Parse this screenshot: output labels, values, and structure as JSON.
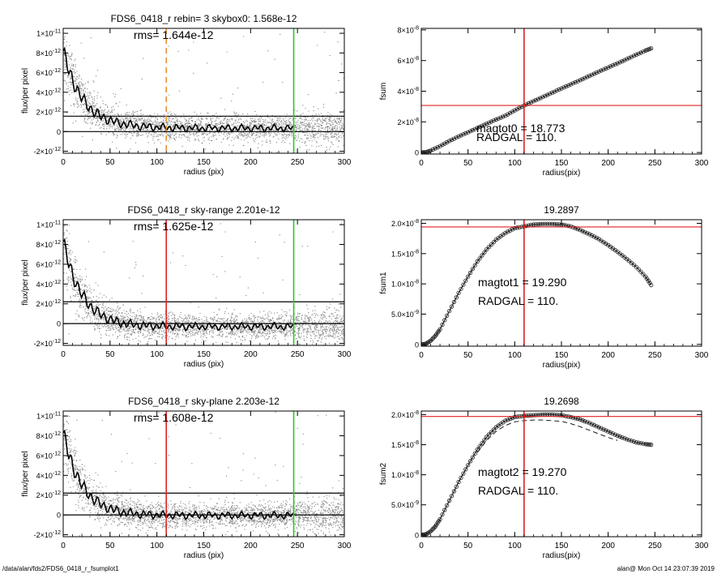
{
  "footer": {
    "path": "/data/alan/fds2/FDS6_0418_r_fsumplot1",
    "stamp": "alan@  Mon Oct 14 23:07:39 2019"
  },
  "colors": {
    "noise": "#8c8c8c",
    "profile": "#000000",
    "red": "#e02020",
    "green": "#22cc22",
    "orange": "#e89030"
  },
  "chart_data": [
    {
      "id": "p1",
      "type": "scatter",
      "title": "FDS6_0418_r rebin= 3    skybox0:  1.568e-12",
      "annotations": [
        {
          "text": "rms= 1.644e-12"
        }
      ],
      "xlabel": "radius (pix)",
      "ylabel": "flux/per pixel",
      "xlim": [
        0,
        300
      ],
      "ylim": [
        -2.2e-12,
        1.05e-11
      ],
      "xticks": [
        0,
        50,
        100,
        150,
        200,
        250,
        300
      ],
      "yticks": [
        {
          "v": 1e-11,
          "m": "1",
          "e": "-11",
          "x10": true
        },
        {
          "v": 8e-12,
          "m": "8",
          "e": "-12",
          "x10": true
        },
        {
          "v": 6e-12,
          "m": "6",
          "e": "-12",
          "x10": true
        },
        {
          "v": 4e-12,
          "m": "4",
          "e": "-12",
          "x10": true
        },
        {
          "v": 2e-12,
          "m": "2",
          "e": "-12",
          "x10": true
        },
        {
          "v": 0,
          "m": "0",
          "e": "",
          "x10": false
        },
        {
          "v": -2e-12,
          "m": "-2",
          "e": "-12",
          "x10": true
        }
      ],
      "hlines": [
        {
          "y": 0,
          "color": "#000000"
        },
        {
          "y": 1.568e-12,
          "color": "#000000"
        }
      ],
      "vlines": [
        {
          "x": 110,
          "color": "#e89030",
          "dashed": true
        },
        {
          "x": 246,
          "color": "#22cc22"
        }
      ],
      "profile": {
        "amp": 8.2e-12,
        "scale": 22,
        "floor": 3.5e-13
      },
      "noise": {
        "n": 2600,
        "spread": 6e-13,
        "outliers": 70
      }
    },
    {
      "id": "p2",
      "type": "line",
      "title": "",
      "annotations": [
        {
          "text": "magtot0 =  18.773"
        },
        {
          "text": "RADGAL =    110."
        }
      ],
      "xlabel": "radius(pix)",
      "ylabel": "fsum",
      "xlim": [
        0,
        300
      ],
      "ylim": [
        -1e-09,
        8.1e-08
      ],
      "xticks": [
        0,
        50,
        100,
        150,
        200,
        250,
        300
      ],
      "yticks": [
        {
          "v": 8e-08,
          "m": "8",
          "e": "-8",
          "x10": true
        },
        {
          "v": 6e-08,
          "m": "6",
          "e": "-8",
          "x10": true
        },
        {
          "v": 4e-08,
          "m": "4",
          "e": "-8",
          "x10": true
        },
        {
          "v": 2e-08,
          "m": "2",
          "e": "-8",
          "x10": true
        },
        {
          "v": 0,
          "m": "0",
          "e": "",
          "x10": false
        }
      ],
      "hlines": [
        {
          "y": 3.07e-08,
          "color": "#e02020"
        }
      ],
      "vlines": [
        {
          "x": 110,
          "color": "#e02020"
        }
      ],
      "curve": {
        "x": [
          0,
          5,
          10,
          20,
          30,
          40,
          50,
          60,
          70,
          80,
          90,
          100,
          110,
          120,
          130,
          140,
          150,
          160,
          170,
          180,
          190,
          200,
          210,
          220,
          230,
          240,
          246
        ],
        "y": [
          0,
          2e-10,
          1.2e-09,
          4.2e-09,
          7.5e-09,
          1.05e-08,
          1.32e-08,
          1.6e-08,
          1.88e-08,
          2.15e-08,
          2.4e-08,
          2.75e-08,
          3.07e-08,
          3.35e-08,
          3.62e-08,
          3.9e-08,
          4.18e-08,
          4.45e-08,
          4.72e-08,
          5e-08,
          5.28e-08,
          5.55e-08,
          5.82e-08,
          6.1e-08,
          6.38e-08,
          6.65e-08,
          6.8e-08
        ]
      }
    },
    {
      "id": "p3",
      "type": "scatter",
      "title": "FDS6_0418_r sky-range  2.201e-12",
      "annotations": [
        {
          "text": "rms= 1.625e-12"
        }
      ],
      "xlabel": "radius (pix)",
      "ylabel": "flux/per pixel",
      "xlim": [
        0,
        300
      ],
      "ylim": [
        -2.2e-12,
        1.05e-11
      ],
      "xticks": [
        0,
        50,
        100,
        150,
        200,
        250,
        300
      ],
      "yticks": [
        {
          "v": 1e-11,
          "m": "1",
          "e": "-11",
          "x10": true
        },
        {
          "v": 8e-12,
          "m": "8",
          "e": "-12",
          "x10": true
        },
        {
          "v": 6e-12,
          "m": "6",
          "e": "-12",
          "x10": true
        },
        {
          "v": 4e-12,
          "m": "4",
          "e": "-12",
          "x10": true
        },
        {
          "v": 2e-12,
          "m": "2",
          "e": "-12",
          "x10": true
        },
        {
          "v": 0,
          "m": "0",
          "e": "",
          "x10": false
        },
        {
          "v": -2e-12,
          "m": "-2",
          "e": "-12",
          "x10": true
        }
      ],
      "hlines": [
        {
          "y": 0,
          "color": "#000000"
        },
        {
          "y": 2.201e-12,
          "color": "#000000"
        }
      ],
      "vlines": [
        {
          "x": 110,
          "color": "#e02020"
        },
        {
          "x": 246,
          "color": "#22cc22"
        }
      ],
      "profile": {
        "amp": 8.3e-12,
        "scale": 20,
        "floor": -3e-13
      },
      "noise": {
        "n": 2600,
        "spread": 6e-13,
        "outliers": 70
      }
    },
    {
      "id": "p4",
      "type": "line",
      "title": "19.2897",
      "annotations": [
        {
          "text": "magtot1 =  19.290"
        },
        {
          "text": "RADGAL =    110."
        }
      ],
      "xlabel": "radius(pix)",
      "ylabel": "fsum1",
      "xlim": [
        0,
        300
      ],
      "ylim": [
        -3e-10,
        2.06e-08
      ],
      "xticks": [
        0,
        50,
        100,
        150,
        200,
        250,
        300
      ],
      "yticks": [
        {
          "v": 2e-08,
          "m": "2.0",
          "e": "-8",
          "x10": true
        },
        {
          "v": 1.5e-08,
          "m": "1.5",
          "e": "-8",
          "x10": true
        },
        {
          "v": 1e-08,
          "m": "1.0",
          "e": "-8",
          "x10": true
        },
        {
          "v": 5e-09,
          "m": "5.0",
          "e": "-9",
          "x10": true
        },
        {
          "v": 0,
          "m": "0",
          "e": "",
          "x10": false
        }
      ],
      "hlines": [
        {
          "y": 1.94e-08,
          "color": "#e02020"
        }
      ],
      "vlines": [
        {
          "x": 110,
          "color": "#e02020"
        }
      ],
      "curve": {
        "x": [
          0,
          5,
          10,
          15,
          20,
          30,
          40,
          50,
          60,
          70,
          80,
          90,
          100,
          110,
          120,
          130,
          140,
          150,
          160,
          170,
          180,
          190,
          200,
          210,
          220,
          230,
          240,
          246
        ],
        "y": [
          0,
          1e-10,
          6e-10,
          1.4e-09,
          2.5e-09,
          5.5e-09,
          8.5e-09,
          1.12e-08,
          1.37e-08,
          1.57e-08,
          1.73e-08,
          1.84e-08,
          1.92e-08,
          1.95e-08,
          1.98e-08,
          1.99e-08,
          1.99e-08,
          1.98e-08,
          1.95e-08,
          1.89e-08,
          1.82e-08,
          1.74e-08,
          1.64e-08,
          1.53e-08,
          1.41e-08,
          1.28e-08,
          1.12e-08,
          9.8e-09
        ]
      }
    },
    {
      "id": "p5",
      "type": "scatter",
      "title": "FDS6_0418_r sky-plane  2.203e-12",
      "annotations": [
        {
          "text": "rms= 1.608e-12"
        }
      ],
      "xlabel": "radius (pix)",
      "ylabel": "flux/per pixel",
      "xlim": [
        0,
        300
      ],
      "ylim": [
        -2.2e-12,
        1.05e-11
      ],
      "xticks": [
        0,
        50,
        100,
        150,
        200,
        250,
        300
      ],
      "yticks": [
        {
          "v": 1e-11,
          "m": "1",
          "e": "-11",
          "x10": true
        },
        {
          "v": 8e-12,
          "m": "8",
          "e": "-12",
          "x10": true
        },
        {
          "v": 6e-12,
          "m": "6",
          "e": "-12",
          "x10": true
        },
        {
          "v": 4e-12,
          "m": "4",
          "e": "-12",
          "x10": true
        },
        {
          "v": 2e-12,
          "m": "2",
          "e": "-12",
          "x10": true
        },
        {
          "v": 0,
          "m": "0",
          "e": "",
          "x10": false
        },
        {
          "v": -2e-12,
          "m": "-2",
          "e": "-12",
          "x10": true
        }
      ],
      "hlines": [
        {
          "y": 0,
          "color": "#000000"
        },
        {
          "y": 2.203e-12,
          "color": "#000000"
        }
      ],
      "vlines": [
        {
          "x": 110,
          "color": "#e02020"
        },
        {
          "x": 246,
          "color": "#22cc22"
        }
      ],
      "profile": {
        "amp": 8.3e-12,
        "scale": 20,
        "floor": -5e-14
      },
      "noise": {
        "n": 2600,
        "spread": 6e-13,
        "outliers": 70
      }
    },
    {
      "id": "p6",
      "type": "line",
      "title": "19.2698",
      "annotations": [
        {
          "text": "magtot2 =  19.270"
        },
        {
          "text": "RADGAL =    110."
        }
      ],
      "xlabel": "radius(pix)",
      "ylabel": "fsum2",
      "xlim": [
        0,
        300
      ],
      "ylim": [
        -3e-10,
        2.06e-08
      ],
      "xticks": [
        0,
        50,
        100,
        150,
        200,
        250,
        300
      ],
      "yticks": [
        {
          "v": 2e-08,
          "m": "2.0",
          "e": "-8",
          "x10": true
        },
        {
          "v": 1.5e-08,
          "m": "1.5",
          "e": "-8",
          "x10": true
        },
        {
          "v": 1e-08,
          "m": "1.0",
          "e": "-8",
          "x10": true
        },
        {
          "v": 5e-09,
          "m": "5.0",
          "e": "-9",
          "x10": true
        },
        {
          "v": 0,
          "m": "0",
          "e": "",
          "x10": false
        }
      ],
      "hlines": [
        {
          "y": 1.97e-08,
          "color": "#e02020"
        }
      ],
      "vlines": [
        {
          "x": 110,
          "color": "#e02020"
        }
      ],
      "curve": {
        "x": [
          0,
          5,
          10,
          15,
          20,
          30,
          40,
          50,
          60,
          70,
          80,
          90,
          100,
          110,
          120,
          130,
          140,
          150,
          160,
          170,
          180,
          190,
          200,
          210,
          220,
          230,
          240,
          246
        ],
        "y": [
          0,
          1e-10,
          6e-10,
          1.4e-09,
          2.6e-09,
          5.7e-09,
          8.8e-09,
          1.16e-08,
          1.42e-08,
          1.63e-08,
          1.79e-08,
          1.9e-08,
          1.96e-08,
          1.98e-08,
          1.99e-08,
          2e-08,
          2e-08,
          1.99e-08,
          1.96e-08,
          1.92e-08,
          1.86e-08,
          1.79e-08,
          1.72e-08,
          1.65e-08,
          1.59e-08,
          1.54e-08,
          1.51e-08,
          1.5e-08
        ]
      },
      "dashed_curve": {
        "x": [
          60,
          70,
          80,
          90,
          100,
          110,
          120,
          130,
          140,
          150,
          160,
          170,
          180,
          190,
          200,
          210
        ],
        "y": [
          1.37e-08,
          1.57e-08,
          1.72e-08,
          1.82e-08,
          1.88e-08,
          1.9e-08,
          1.91e-08,
          1.91e-08,
          1.9e-08,
          1.89e-08,
          1.85e-08,
          1.8e-08,
          1.74e-08,
          1.68e-08,
          1.62e-08,
          1.57e-08
        ]
      }
    }
  ]
}
